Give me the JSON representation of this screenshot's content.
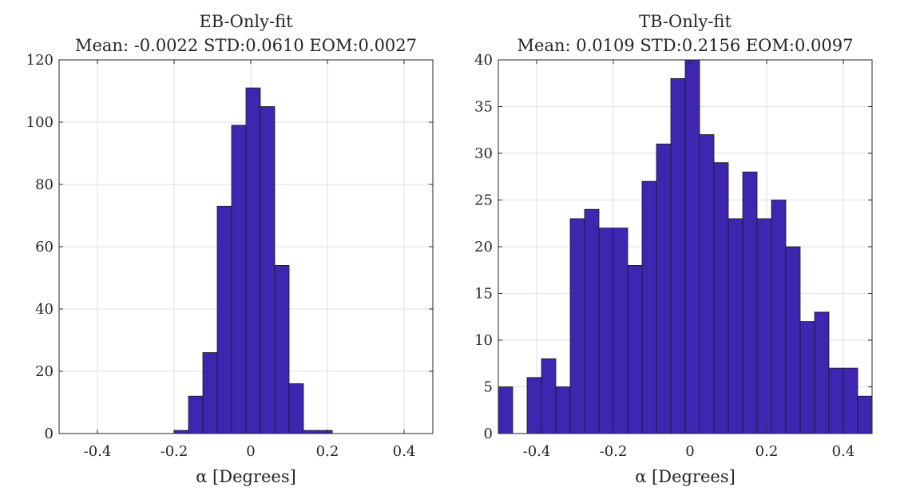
{
  "chart_data": [
    {
      "type": "bar",
      "title": "EB-Only-fit",
      "subtitle": "Mean: -0.0022 STD:0.0610 EOM:0.0027",
      "xlabel": "α [Degrees]",
      "ylabel": "",
      "xlim": [
        -0.5,
        0.475
      ],
      "ylim": [
        0,
        120
      ],
      "xticks": [
        -0.4,
        -0.2,
        0,
        0.2,
        0.4
      ],
      "xtick_labels": [
        "-0.4",
        "-0.2",
        "0",
        "0.2",
        "0.4"
      ],
      "yticks": [
        0,
        20,
        40,
        60,
        80,
        100,
        120
      ],
      "ytick_labels": [
        "0",
        "20",
        "40",
        "60",
        "80",
        "100",
        "120"
      ],
      "grid": true,
      "bar_color": "#3f26b0",
      "bin_edges": [
        -0.5,
        -0.4625,
        -0.425,
        -0.3875,
        -0.35,
        -0.3125,
        -0.275,
        -0.2375,
        -0.2,
        -0.1625,
        -0.125,
        -0.0875,
        -0.05,
        -0.0125,
        0.025,
        0.0625,
        0.1,
        0.1375,
        0.175,
        0.2125,
        0.25,
        0.2875,
        0.325,
        0.3625,
        0.4,
        0.4375,
        0.475
      ],
      "values": [
        0,
        0,
        0,
        0,
        0,
        0,
        0,
        0,
        1,
        12,
        26,
        73,
        99,
        111,
        105,
        54,
        16,
        1,
        1,
        0,
        0,
        0,
        0,
        0,
        0,
        0
      ]
    },
    {
      "type": "bar",
      "title": "TB-Only-fit",
      "subtitle": "Mean: 0.0109 STD:0.2156 EOM:0.0097",
      "xlabel": "α [Degrees]",
      "ylabel": "",
      "xlim": [
        -0.5,
        0.475
      ],
      "ylim": [
        0,
        40
      ],
      "xticks": [
        -0.4,
        -0.2,
        0,
        0.2,
        0.4
      ],
      "xtick_labels": [
        "-0.4",
        "-0.2",
        "0",
        "0.2",
        "0.4"
      ],
      "yticks": [
        0,
        5,
        10,
        15,
        20,
        25,
        30,
        35,
        40
      ],
      "ytick_labels": [
        "0",
        "5",
        "10",
        "15",
        "20",
        "25",
        "30",
        "35",
        "40"
      ],
      "grid": true,
      "bar_color": "#3f26b0",
      "bin_edges": [
        -0.5,
        -0.4625,
        -0.425,
        -0.3875,
        -0.35,
        -0.3125,
        -0.275,
        -0.2375,
        -0.2,
        -0.1625,
        -0.125,
        -0.0875,
        -0.05,
        -0.0125,
        0.025,
        0.0625,
        0.1,
        0.1375,
        0.175,
        0.2125,
        0.25,
        0.2875,
        0.325,
        0.3625,
        0.4,
        0.4375,
        0.475
      ],
      "values": [
        5,
        0,
        6,
        8,
        5,
        23,
        24,
        22,
        22,
        18,
        27,
        31,
        38,
        40,
        32,
        29,
        23,
        28,
        23,
        25,
        20,
        12,
        13,
        7,
        7,
        4
      ]
    }
  ]
}
